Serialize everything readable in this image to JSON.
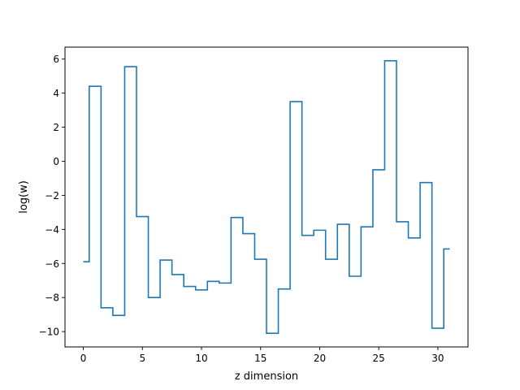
{
  "chart_data": {
    "type": "line",
    "step_where": "mid",
    "title": "",
    "xlabel": "z dimension",
    "ylabel": "log(w)",
    "xlim": [
      -1.55,
      32.55
    ],
    "ylim": [
      -10.9,
      6.7
    ],
    "xticks": [
      0,
      5,
      10,
      15,
      20,
      25,
      30
    ],
    "yticks": [
      -10,
      -8,
      -6,
      -4,
      -2,
      0,
      2,
      4,
      6
    ],
    "ytick_labels": [
      "−10",
      "−8",
      "−6",
      "−4",
      "−2",
      "0",
      "2",
      "4",
      "6"
    ],
    "grid": false,
    "legend": false,
    "series": [
      {
        "color": "#1f77b4",
        "x": [
          0,
          1,
          2,
          3,
          4,
          5,
          6,
          7,
          8,
          9,
          10,
          11,
          12,
          13,
          14,
          15,
          16,
          17,
          18,
          19,
          20,
          21,
          22,
          23,
          24,
          25,
          26,
          27,
          28,
          29,
          30,
          31
        ],
        "y": [
          -5.9,
          4.4,
          -8.6,
          -9.05,
          5.55,
          -3.25,
          -8.0,
          -5.8,
          -6.65,
          -7.35,
          -7.55,
          -7.05,
          -7.15,
          -3.3,
          -4.25,
          -5.75,
          -10.1,
          -7.5,
          3.5,
          -4.35,
          -4.05,
          -5.75,
          -3.7,
          -6.75,
          -3.85,
          -0.5,
          5.9,
          -3.55,
          -4.5,
          -1.25,
          -9.8,
          -5.15
        ]
      }
    ]
  }
}
